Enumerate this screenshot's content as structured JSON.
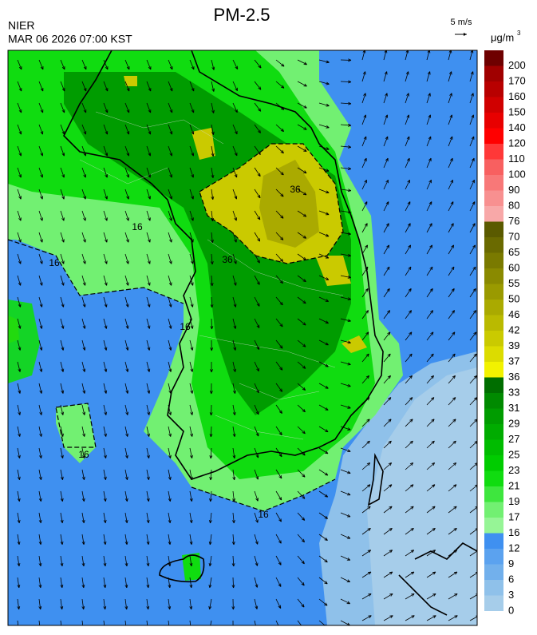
{
  "header": {
    "title": "PM-2.5",
    "agency": "NIER",
    "datetime": "MAR 06 2026 07:00 KST",
    "wind_scale": "5 m/s"
  },
  "colorbar": {
    "unit": "μg/m",
    "unit_sup": "3",
    "levels": [
      {
        "value": 0,
        "color": "#a6cdea"
      },
      {
        "value": 3,
        "color": "#8fc1ea"
      },
      {
        "value": 6,
        "color": "#72b0ec"
      },
      {
        "value": 9,
        "color": "#5ba2ef"
      },
      {
        "value": 12,
        "color": "#3f90f0"
      },
      {
        "value": 16,
        "color": "#96f596"
      },
      {
        "value": 17,
        "color": "#72f072"
      },
      {
        "value": 19,
        "color": "#3ee63e"
      },
      {
        "value": 21,
        "color": "#10dc10"
      },
      {
        "value": 23,
        "color": "#00cc00"
      },
      {
        "value": 25,
        "color": "#00bc00"
      },
      {
        "value": 27,
        "color": "#00ac00"
      },
      {
        "value": 29,
        "color": "#009c00"
      },
      {
        "value": 31,
        "color": "#008a00"
      },
      {
        "value": 33,
        "color": "#006e00"
      },
      {
        "value": 36,
        "color": "#f2f200"
      },
      {
        "value": 37,
        "color": "#dcdc00"
      },
      {
        "value": 39,
        "color": "#caca00"
      },
      {
        "value": 42,
        "color": "#baba00"
      },
      {
        "value": 46,
        "color": "#aaaa00"
      },
      {
        "value": 50,
        "color": "#9a9a00"
      },
      {
        "value": 55,
        "color": "#8a8a00"
      },
      {
        "value": 60,
        "color": "#7a7a00"
      },
      {
        "value": 65,
        "color": "#6a6a00"
      },
      {
        "value": 70,
        "color": "#5a5a00"
      },
      {
        "value": 76,
        "color": "#f8a8a8"
      },
      {
        "value": 80,
        "color": "#f89090"
      },
      {
        "value": 90,
        "color": "#f87878"
      },
      {
        "value": 100,
        "color": "#f86060"
      },
      {
        "value": 110,
        "color": "#ff3838"
      },
      {
        "value": 120,
        "color": "#ff0000"
      },
      {
        "value": 140,
        "color": "#e80000"
      },
      {
        "value": 150,
        "color": "#d00000"
      },
      {
        "value": 160,
        "color": "#b80000"
      },
      {
        "value": 170,
        "color": "#a00000"
      },
      {
        "value": 200,
        "color": "#6e0000"
      }
    ]
  },
  "contour_labels": [
    "16",
    "16",
    "16",
    "16",
    "16",
    "36",
    "36"
  ]
}
